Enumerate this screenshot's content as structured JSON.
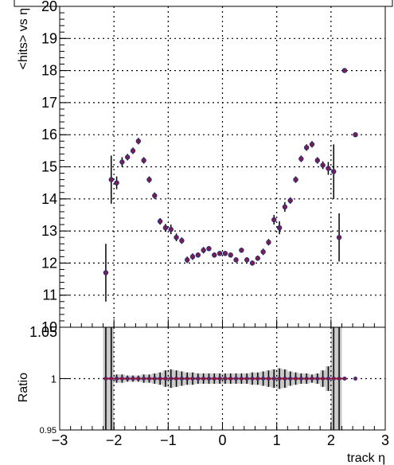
{
  "chart_data": [
    {
      "type": "scatter",
      "title": "",
      "xlabel": "",
      "ylabel": "<hits> vs η",
      "xlim": [
        -3,
        3
      ],
      "ylim": [
        10,
        20
      ],
      "grid": true,
      "xticks": [
        -3,
        -2,
        -1,
        0,
        1,
        2,
        3
      ],
      "yticks": [
        10,
        11,
        12,
        13,
        14,
        15,
        16,
        17,
        18,
        19,
        20
      ],
      "ytick_labels": [
        "10",
        "11",
        "12",
        "13",
        "14",
        "15",
        "16",
        "17",
        "18",
        "19",
        "20"
      ],
      "series": [
        {
          "x": [
            -2.15,
            -2.05,
            -1.95,
            -1.85,
            -1.75,
            -1.65,
            -1.55,
            -1.45,
            -1.35,
            -1.25,
            -1.15,
            -1.05,
            -0.95,
            -0.85,
            -0.75,
            -0.65,
            -0.55,
            -0.45,
            -0.35,
            -0.25,
            -0.15,
            -0.05,
            0.05,
            0.15,
            0.25,
            0.35,
            0.45,
            0.55,
            0.65,
            0.75,
            0.85,
            0.95,
            1.05,
            1.15,
            1.25,
            1.35,
            1.45,
            1.55,
            1.65,
            1.75,
            1.85,
            1.95,
            2.05,
            2.15,
            2.25,
            2.45
          ],
          "y": [
            11.7,
            14.6,
            14.5,
            15.15,
            15.3,
            15.5,
            15.8,
            15.2,
            14.6,
            14.1,
            13.3,
            13.1,
            13.05,
            12.8,
            12.7,
            12.1,
            12.2,
            12.25,
            12.4,
            12.45,
            12.25,
            12.3,
            12.3,
            12.25,
            12.1,
            12.4,
            12.1,
            12.0,
            12.15,
            12.35,
            12.65,
            13.35,
            13.1,
            13.75,
            13.95,
            14.6,
            15.25,
            15.6,
            15.7,
            15.2,
            15.05,
            14.95,
            14.85,
            12.8,
            18.0,
            16.0
          ],
          "yerr": [
            0.9,
            0.75,
            0.2,
            0.15,
            0.1,
            0.1,
            0.1,
            0.1,
            0.1,
            0.1,
            0.1,
            0.12,
            0.15,
            0.12,
            0.1,
            0.1,
            0.1,
            0.08,
            0.1,
            0.08,
            0.08,
            0.08,
            0.08,
            0.08,
            0.08,
            0.08,
            0.08,
            0.08,
            0.08,
            0.1,
            0.1,
            0.15,
            0.2,
            0.15,
            0.1,
            0.1,
            0.1,
            0.1,
            0.1,
            0.1,
            0.12,
            0.2,
            0.85,
            0.75,
            0.0,
            0.0
          ]
        }
      ]
    },
    {
      "type": "scatter",
      "title": "",
      "xlabel": "track η",
      "ylabel": "Ratio",
      "xlim": [
        -3,
        3
      ],
      "ylim": [
        0.95,
        1.05
      ],
      "grid": true,
      "xticks": [
        -3,
        -2,
        -1,
        0,
        1,
        2,
        3
      ],
      "xtick_labels": [
        "−3",
        "−2",
        "−1",
        "0",
        "1",
        "2",
        "3"
      ],
      "yticks": [
        0.95,
        1
      ],
      "ytick_labels": [
        "0.95",
        "1"
      ],
      "top_tick_label": "1.05",
      "reference_line": 1,
      "series": [
        {
          "x": [
            -2.15,
            -2.05,
            -1.95,
            -1.85,
            -1.75,
            -1.65,
            -1.55,
            -1.45,
            -1.35,
            -1.25,
            -1.15,
            -1.05,
            -0.95,
            -0.85,
            -0.75,
            -0.65,
            -0.55,
            -0.45,
            -0.35,
            -0.25,
            -0.15,
            -0.05,
            0.05,
            0.15,
            0.25,
            0.35,
            0.45,
            0.55,
            0.65,
            0.75,
            0.85,
            0.95,
            1.05,
            1.15,
            1.25,
            1.35,
            1.45,
            1.55,
            1.65,
            1.75,
            1.85,
            1.95,
            2.05,
            2.15,
            2.25,
            2.45
          ],
          "y": [
            1,
            1,
            1,
            1,
            1,
            1,
            1,
            1,
            1,
            1,
            1,
            1,
            1,
            1,
            1,
            1,
            1,
            1,
            1,
            1,
            1,
            1,
            1,
            1,
            1,
            1,
            1,
            1,
            1,
            1,
            1,
            1,
            1,
            1,
            1,
            1,
            1,
            1,
            1,
            1,
            1,
            1,
            1,
            1,
            1,
            1
          ],
          "yerr": [
            0.06,
            0.06,
            0.004,
            0.004,
            0.003,
            0.003,
            0.003,
            0.004,
            0.004,
            0.005,
            0.006,
            0.008,
            0.009,
            0.008,
            0.007,
            0.006,
            0.006,
            0.005,
            0.005,
            0.005,
            0.005,
            0.005,
            0.005,
            0.005,
            0.005,
            0.005,
            0.005,
            0.006,
            0.006,
            0.007,
            0.008,
            0.009,
            0.01,
            0.009,
            0.007,
            0.006,
            0.005,
            0.005,
            0.004,
            0.005,
            0.008,
            0.012,
            0.06,
            0.06,
            0.0,
            0.0
          ]
        }
      ]
    }
  ]
}
